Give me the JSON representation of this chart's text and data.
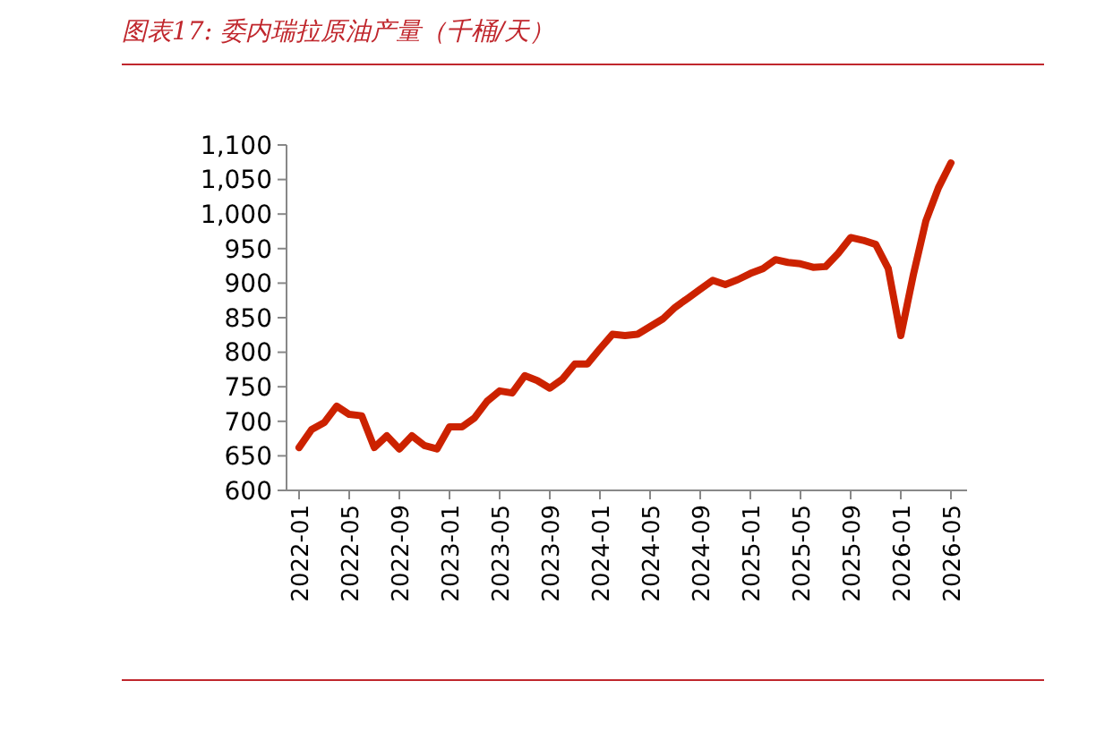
{
  "chart_data": {
    "type": "line",
    "title": "图表17:  委内瑞拉原油产量（千桶/天）",
    "categories": [
      "2022-01",
      null,
      null,
      null,
      "2022-05",
      null,
      null,
      null,
      "2022-09",
      null,
      null,
      null,
      "2023-01",
      null,
      null,
      null,
      "2023-05",
      null,
      null,
      null,
      "2023-09",
      null,
      null,
      null,
      "2024-01",
      null,
      null,
      null,
      "2024-05",
      null,
      null,
      null,
      "2024-09",
      null,
      null,
      null,
      "2025-01",
      null,
      null,
      null,
      "2025-05",
      null,
      null,
      null,
      "2025-09",
      null,
      null,
      null,
      "2026-01",
      null,
      null,
      null,
      "2026-05"
    ],
    "series": [
      {
        "color": "#cc2200",
        "values": [
          662,
          688,
          698,
          722,
          710,
          708,
          662,
          679,
          660,
          679,
          665,
          660,
          692,
          692,
          705,
          729,
          744,
          741,
          766,
          759,
          748,
          761,
          783,
          783,
          805,
          826,
          824,
          826,
          837,
          848,
          865,
          878,
          891,
          904,
          898,
          905,
          914,
          921,
          934,
          930,
          928,
          923,
          924,
          943,
          966,
          962,
          956,
          921,
          824,
          912,
          990,
          1038,
          1074
        ]
      }
    ],
    "ylim": [
      600,
      1100
    ],
    "yticks": [
      600,
      650,
      700,
      750,
      800,
      850,
      900,
      950,
      {
        "value": 1000,
        "label": "1,000"
      },
      {
        "value": 1050,
        "label": "1,050"
      },
      {
        "value": 1100,
        "label": "1,100"
      }
    ],
    "marker": "none",
    "line_style": "solid"
  }
}
